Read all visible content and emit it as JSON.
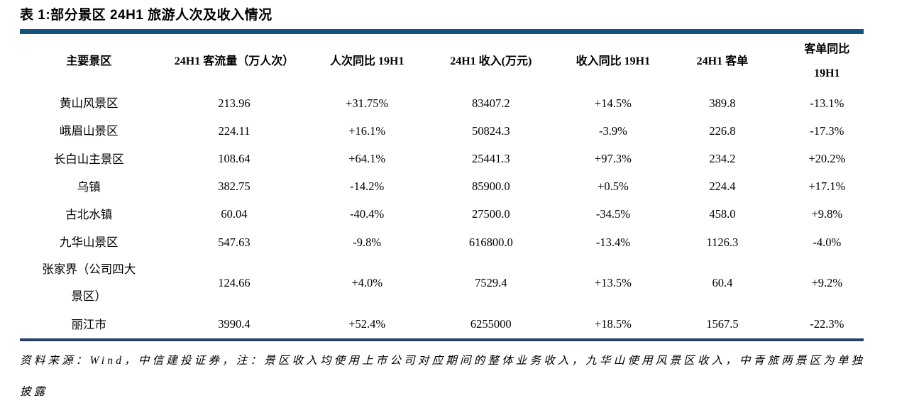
{
  "title": "表 1:部分景区 24H1 旅游人次及收入情况",
  "colors": {
    "top_rule": "#15537F",
    "bottom_rule": "#26406B"
  },
  "table": {
    "columns": [
      "主要景区",
      "24H1 客流量（万人次）",
      "人次同比 19H1",
      "24H1 收入(万元)",
      "收入同比 19H1",
      "24H1 客单",
      "客单同比\n19H1"
    ],
    "rows": [
      [
        "黄山风景区",
        "213.96",
        "+31.75%",
        "83407.2",
        "+14.5%",
        "389.8",
        "-13.1%"
      ],
      [
        "峨眉山景区",
        "224.11",
        "+16.1%",
        "50824.3",
        "-3.9%",
        "226.8",
        "-17.3%"
      ],
      [
        "长白山主景区",
        "108.64",
        "+64.1%",
        "25441.3",
        "+97.3%",
        "234.2",
        "+20.2%"
      ],
      [
        "乌镇",
        "382.75",
        "-14.2%",
        "85900.0",
        "+0.5%",
        "224.4",
        "+17.1%"
      ],
      [
        "古北水镇",
        "60.04",
        "-40.4%",
        "27500.0",
        "-34.5%",
        "458.0",
        "+9.8%"
      ],
      [
        "九华山景区",
        "547.63",
        "-9.8%",
        "616800.0",
        "-13.4%",
        "1126.3",
        "-4.0%"
      ],
      [
        "张家界（公司四大景区）",
        "124.66",
        "+4.0%",
        "7529.4",
        "+13.5%",
        "60.4",
        "+9.2%"
      ],
      [
        "丽江市",
        "3990.4",
        "+52.4%",
        "6255000",
        "+18.5%",
        "1567.5",
        "-22.3%"
      ]
    ]
  },
  "footnote": "资料来源：Wind，中信建投证券，注：景区收入均使用上市公司对应期间的整体业务收入，九华山使用风景区收入，中青旅两景区为单独披露"
}
